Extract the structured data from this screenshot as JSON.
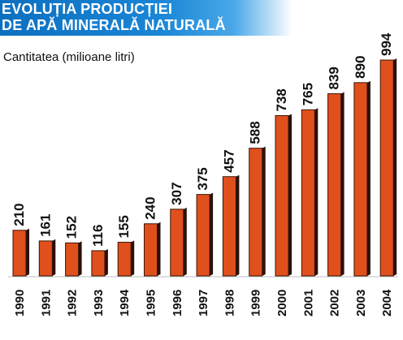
{
  "chart_data": {
    "type": "bar",
    "title_lines": [
      "EVOLUȚIA PRODUCȚIEI",
      "DE APĂ MINERALĂ NATURALĂ"
    ],
    "ylabel": "Cantitatea (milioane litri)",
    "categories": [
      "1990",
      "1991",
      "1992",
      "1993",
      "1994",
      "1995",
      "1996",
      "1997",
      "1998",
      "1999",
      "2000",
      "2001",
      "2002",
      "2003",
      "2004"
    ],
    "values": [
      210,
      161,
      152,
      116,
      155,
      240,
      307,
      375,
      457,
      588,
      738,
      765,
      839,
      890,
      994
    ],
    "ylim": [
      0,
      1000
    ],
    "grid": false,
    "legend": "none",
    "colors": {
      "bar_front": "#e0501c",
      "bar_side": "#2a1008",
      "title_band": "#1a86d6"
    }
  }
}
